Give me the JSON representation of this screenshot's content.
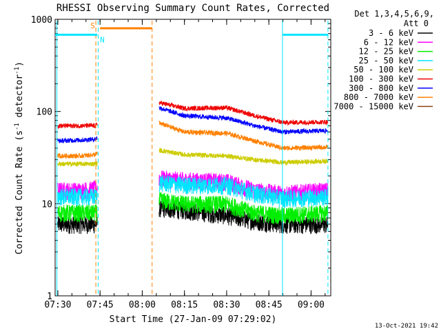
{
  "chart_data": {
    "type": "line",
    "title": "RHESSI Observing Summary Count Rates, Corrected",
    "xlabel": "Start Time (27-Jan-09 07:29:02)",
    "ylabel": "Corrected Count Rate (s⁻¹ detector⁻¹)",
    "ylabel_main": "Corrected Count Rate (s",
    "ylabel_sup1": "-1",
    "ylabel_mid": " detector",
    "ylabel_sup2": "-1",
    "ylabel_end": ")",
    "y_scale": "log",
    "ylim": [
      1,
      1000
    ],
    "xlim": [
      "07:29:02",
      "09:07:00"
    ],
    "x_ticks": [
      "07:30",
      "07:45",
      "08:00",
      "08:15",
      "08:30",
      "08:45",
      "09:00"
    ],
    "y_ticks": [
      "1",
      "10",
      "100",
      "1000"
    ],
    "legend_title": "Det 1,3,4,5,6,9,",
    "legend_subtitle": "Att 0",
    "legend_position": "right",
    "timestamp": "13-Oct-2021 19:42",
    "flags": [
      {
        "label": "S",
        "color": "#ff8000",
        "start": "07:45:00",
        "end": "08:03:30",
        "level": 800
      },
      {
        "label": "N",
        "color": "#00e5ff",
        "segments": [
          [
            "07:29:02",
            "07:44:00"
          ],
          [
            "08:50:00",
            "09:06:00"
          ]
        ],
        "level": 680
      }
    ],
    "markers": [
      {
        "time": "07:29:40",
        "color": "#00e5ff",
        "style": "solid"
      },
      {
        "time": "07:44:20",
        "color": "#00e5ff",
        "style": "dashed"
      },
      {
        "time": "07:43:30",
        "color": "#ff8000",
        "style": "dashed"
      },
      {
        "time": "08:03:30",
        "color": "#ff8000",
        "style": "dashed"
      },
      {
        "time": "08:49:50",
        "color": "#00e5ff",
        "style": "solid"
      },
      {
        "time": "09:06:00",
        "color": "#00e5ff",
        "style": "dashed"
      }
    ],
    "gap": [
      "07:44:00",
      "08:06:00"
    ],
    "series": [
      {
        "name": "3 - 6 keV",
        "color": "#000000",
        "x": [
          "07:30",
          "07:38",
          "07:43",
          "08:06",
          "08:15",
          "08:30",
          "08:40",
          "08:50",
          "09:06"
        ],
        "values": [
          6,
          6,
          6,
          9,
          8.5,
          7.5,
          6.5,
          6,
          6
        ]
      },
      {
        "name": "6 - 12 keV",
        "color": "#ff00ff",
        "x": [
          "07:30",
          "07:38",
          "07:43",
          "08:06",
          "08:15",
          "08:30",
          "08:40",
          "08:50",
          "09:06"
        ],
        "values": [
          14,
          14,
          14.5,
          19,
          18,
          17.5,
          14,
          13,
          14
        ]
      },
      {
        "name": "12 - 25 keV",
        "color": "#00ee00",
        "x": [
          "07:30",
          "07:38",
          "07:43",
          "08:06",
          "08:15",
          "08:30",
          "08:40",
          "08:50",
          "09:06"
        ],
        "values": [
          8,
          8,
          8,
          11,
          10,
          10,
          8,
          7.5,
          8
        ]
      },
      {
        "name": "25 - 50 keV",
        "color": "#00e5ff",
        "x": [
          "07:30",
          "07:38",
          "07:43",
          "08:06",
          "08:15",
          "08:30",
          "08:40",
          "08:50",
          "09:06"
        ],
        "values": [
          12,
          12,
          12,
          17,
          16,
          16,
          13,
          11.5,
          12
        ]
      },
      {
        "name": "50 - 100 keV",
        "color": "#cccc00",
        "x": [
          "07:30",
          "07:38",
          "07:43",
          "08:06",
          "08:15",
          "08:30",
          "08:40",
          "08:50",
          "09:06"
        ],
        "values": [
          27,
          27,
          27,
          38,
          34,
          33,
          30,
          28,
          29
        ]
      },
      {
        "name": "100 - 300 keV",
        "color": "#ee0000",
        "x": [
          "07:30",
          "07:38",
          "07:43",
          "08:06",
          "08:15",
          "08:30",
          "08:40",
          "08:50",
          "09:06"
        ],
        "values": [
          70,
          70,
          70,
          125,
          108,
          110,
          90,
          76,
          77
        ]
      },
      {
        "name": "300 - 800 keV",
        "color": "#0000ff",
        "x": [
          "07:30",
          "07:38",
          "07:43",
          "08:06",
          "08:15",
          "08:30",
          "08:40",
          "08:50",
          "09:06"
        ],
        "values": [
          48,
          49,
          50,
          110,
          90,
          85,
          70,
          60,
          62
        ]
      },
      {
        "name": "800 - 7000 keV",
        "color": "#ff8000",
        "x": [
          "07:30",
          "07:38",
          "07:43",
          "08:06",
          "08:15",
          "08:30",
          "08:40",
          "08:50",
          "09:06"
        ],
        "values": [
          33,
          33,
          34,
          75,
          60,
          58,
          48,
          40,
          41
        ]
      },
      {
        "name": "7000 - 15000 keV",
        "color": "#8b4513",
        "x": [],
        "values": []
      }
    ]
  }
}
